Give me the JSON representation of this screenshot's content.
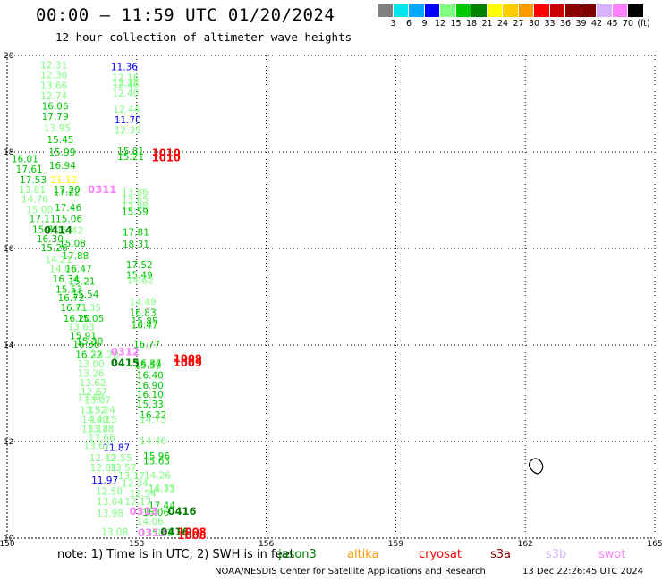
{
  "title": "00:00 – 11:59 UTC 01/20/2024",
  "subtitle": "12 hour collection of altimeter wave heights",
  "color_scale": {
    "colors": [
      "#808080",
      "#00e5ee",
      "#00a8ff",
      "#0000ff",
      "#80ff80",
      "#00c800",
      "#008000",
      "#ffff00",
      "#ffcc00",
      "#ff9900",
      "#ff0000",
      "#c80000",
      "#8b0000",
      "#800000",
      "#d8b4ff",
      "#ff80ff",
      "#000000"
    ],
    "labels": [
      "3",
      "6",
      "9",
      "12",
      "15",
      "18",
      "21",
      "24",
      "27",
      "30",
      "33",
      "36",
      "39",
      "42",
      "45",
      "70",
      "(ft)"
    ]
  },
  "map": {
    "x_ticks": [
      "150",
      "153",
      "156",
      "159",
      "162",
      "165"
    ],
    "y_ticks": [
      "20",
      "18",
      "16",
      "14",
      "12",
      "10"
    ],
    "lon_range": [
      150,
      165
    ],
    "lat_range": [
      10,
      20
    ]
  },
  "observations": [
    {
      "t": "12.31",
      "lon": 150.77,
      "lat": 19.81,
      "c": "#80ff80"
    },
    {
      "t": "12.30",
      "lon": 150.77,
      "lat": 19.6,
      "c": "#80ff80"
    },
    {
      "t": "13.66",
      "lon": 150.77,
      "lat": 19.38,
      "c": "#80ff80"
    },
    {
      "t": "12.74",
      "lon": 150.77,
      "lat": 19.17,
      "c": "#80ff80"
    },
    {
      "t": "16.06",
      "lon": 150.8,
      "lat": 18.95,
      "c": "#00c800"
    },
    {
      "t": "17.79",
      "lon": 150.8,
      "lat": 18.74,
      "c": "#00c800"
    },
    {
      "t": "13.95",
      "lon": 150.85,
      "lat": 18.5,
      "c": "#80ff80"
    },
    {
      "t": "15.45",
      "lon": 150.92,
      "lat": 18.26,
      "c": "#00c800"
    },
    {
      "t": "15.99",
      "lon": 150.96,
      "lat": 18.0,
      "c": "#00c800"
    },
    {
      "t": "16.01",
      "lon": 150.1,
      "lat": 17.86,
      "c": "#00c800"
    },
    {
      "t": "17.61",
      "lon": 150.2,
      "lat": 17.65,
      "c": "#00c800"
    },
    {
      "t": "16.94",
      "lon": 150.97,
      "lat": 17.72,
      "c": "#00c800"
    },
    {
      "t": "17.53",
      "lon": 150.29,
      "lat": 17.43,
      "c": "#00c800"
    },
    {
      "t": "21.12",
      "lon": 151.0,
      "lat": 17.43,
      "c": "#ffff00"
    },
    {
      "t": "13.81",
      "lon": 150.27,
      "lat": 17.22,
      "c": "#80ff80"
    },
    {
      "t": "17.20",
      "lon": 151.07,
      "lat": 17.22,
      "c": "#00c800"
    },
    {
      "t": "17.22",
      "lon": 151.07,
      "lat": 17.18,
      "c": "#00c800"
    },
    {
      "t": "14.76",
      "lon": 150.33,
      "lat": 17.03,
      "c": "#80ff80"
    },
    {
      "t": "15.00",
      "lon": 150.44,
      "lat": 16.81,
      "c": "#80ff80"
    },
    {
      "t": "17.46",
      "lon": 151.1,
      "lat": 16.85,
      "c": "#00c800"
    },
    {
      "t": "17.11",
      "lon": 150.51,
      "lat": 16.62,
      "c": "#00c800"
    },
    {
      "t": "15.06",
      "lon": 151.12,
      "lat": 16.62,
      "c": "#00c800"
    },
    {
      "t": "15.81",
      "lon": 150.58,
      "lat": 16.4,
      "c": "#00c800"
    },
    {
      "t": "15.42",
      "lon": 151.14,
      "lat": 16.38,
      "c": "#80ff80"
    },
    {
      "t": "16.30",
      "lon": 150.68,
      "lat": 16.2,
      "c": "#00c800"
    },
    {
      "t": "15.08",
      "lon": 151.2,
      "lat": 16.11,
      "c": "#00c800"
    },
    {
      "t": "15.26",
      "lon": 150.78,
      "lat": 16.02,
      "c": "#00c800"
    },
    {
      "t": "17.88",
      "lon": 151.27,
      "lat": 15.85,
      "c": "#00c800"
    },
    {
      "t": "14.21",
      "lon": 150.88,
      "lat": 15.78,
      "c": "#80ff80"
    },
    {
      "t": "14.06",
      "lon": 150.98,
      "lat": 15.58,
      "c": "#80ff80"
    },
    {
      "t": "16.47",
      "lon": 151.34,
      "lat": 15.58,
      "c": "#00c800"
    },
    {
      "t": "16.34",
      "lon": 151.05,
      "lat": 15.37,
      "c": "#00c800"
    },
    {
      "t": "15.21",
      "lon": 151.42,
      "lat": 15.32,
      "c": "#00c800"
    },
    {
      "t": "15.53",
      "lon": 151.12,
      "lat": 15.16,
      "c": "#00c800"
    },
    {
      "t": "15.54",
      "lon": 151.5,
      "lat": 15.06,
      "c": "#00c800"
    },
    {
      "t": "16.72",
      "lon": 151.17,
      "lat": 14.98,
      "c": "#00c800"
    },
    {
      "t": "16.71",
      "lon": 151.23,
      "lat": 14.78,
      "c": "#00c800"
    },
    {
      "t": "13.35",
      "lon": 151.55,
      "lat": 14.78,
      "c": "#80ff80"
    },
    {
      "t": "16.20",
      "lon": 151.3,
      "lat": 14.56,
      "c": "#00c800"
    },
    {
      "t": "15.05",
      "lon": 151.62,
      "lat": 14.56,
      "c": "#00c800"
    },
    {
      "t": "13.63",
      "lon": 151.4,
      "lat": 14.38,
      "c": "#80ff80"
    },
    {
      "t": "15.91",
      "lon": 151.45,
      "lat": 14.19,
      "c": "#00c800"
    },
    {
      "t": "16.36",
      "lon": 151.52,
      "lat": 14.02,
      "c": "#00c800"
    },
    {
      "t": "15.30",
      "lon": 151.6,
      "lat": 14.08,
      "c": "#00c800"
    },
    {
      "t": "16.22",
      "lon": 151.58,
      "lat": 13.81,
      "c": "#00c800"
    },
    {
      "t": "14.20",
      "lon": 151.96,
      "lat": 13.81,
      "c": "#80ff80"
    },
    {
      "t": "13.00",
      "lon": 151.63,
      "lat": 13.61,
      "c": "#80ff80"
    },
    {
      "t": "13.26",
      "lon": 151.63,
      "lat": 13.42,
      "c": "#80ff80"
    },
    {
      "t": "13.62",
      "lon": 151.67,
      "lat": 13.22,
      "c": "#80ff80"
    },
    {
      "t": "12.67",
      "lon": 151.7,
      "lat": 13.04,
      "c": "#80ff80"
    },
    {
      "t": "13.07",
      "lon": 151.78,
      "lat": 12.86,
      "c": "#80ff80"
    },
    {
      "t": "13.40",
      "lon": 151.62,
      "lat": 12.92,
      "c": "#80ff80"
    },
    {
      "t": "13.52",
      "lon": 151.68,
      "lat": 12.66,
      "c": "#80ff80"
    },
    {
      "t": "13.24",
      "lon": 151.88,
      "lat": 12.66,
      "c": "#80ff80"
    },
    {
      "t": "14.00",
      "lon": 151.72,
      "lat": 12.46,
      "c": "#80ff80"
    },
    {
      "t": "14.15",
      "lon": 151.92,
      "lat": 12.46,
      "c": "#80ff80"
    },
    {
      "t": "13.78",
      "lon": 151.85,
      "lat": 12.27,
      "c": "#80ff80"
    },
    {
      "t": "13.18",
      "lon": 151.72,
      "lat": 12.27,
      "c": "#80ff80"
    },
    {
      "t": "13.66",
      "lon": 151.88,
      "lat": 12.08,
      "c": "#80ff80"
    },
    {
      "t": "13.67",
      "lon": 151.77,
      "lat": 11.92,
      "c": "#80ff80"
    },
    {
      "t": "11.87",
      "lon": 152.22,
      "lat": 11.88,
      "c": "#0000ff"
    },
    {
      "t": "12.42",
      "lon": 151.9,
      "lat": 11.67,
      "c": "#80ff80"
    },
    {
      "t": "12.55",
      "lon": 152.27,
      "lat": 11.67,
      "c": "#80ff80"
    },
    {
      "t": "12.01",
      "lon": 151.92,
      "lat": 11.46,
      "c": "#80ff80"
    },
    {
      "t": "13.57",
      "lon": 152.37,
      "lat": 11.46,
      "c": "#80ff80"
    },
    {
      "t": "13.17",
      "lon": 152.57,
      "lat": 11.3,
      "c": "#80ff80"
    },
    {
      "t": "11.97",
      "lon": 151.95,
      "lat": 11.2,
      "c": "#0000ff"
    },
    {
      "t": "12.34",
      "lon": 152.65,
      "lat": 11.14,
      "c": "#80ff80"
    },
    {
      "t": "12.50",
      "lon": 152.05,
      "lat": 10.97,
      "c": "#80ff80"
    },
    {
      "t": "12.54",
      "lon": 152.83,
      "lat": 10.93,
      "c": "#80ff80"
    },
    {
      "t": "13.04",
      "lon": 152.07,
      "lat": 10.76,
      "c": "#80ff80"
    },
    {
      "t": "12.17",
      "lon": 152.72,
      "lat": 10.76,
      "c": "#80ff80"
    },
    {
      "t": "13.98",
      "lon": 152.07,
      "lat": 10.52,
      "c": "#80ff80"
    },
    {
      "t": "13.08",
      "lon": 152.18,
      "lat": 10.13,
      "c": "#80ff80"
    },
    {
      "t": "11.36",
      "lon": 152.4,
      "lat": 19.77,
      "c": "#0000ff"
    },
    {
      "t": "12.16",
      "lon": 152.43,
      "lat": 19.55,
      "c": "#80ff80"
    },
    {
      "t": "12.15",
      "lon": 152.43,
      "lat": 19.44,
      "c": "#80ff80"
    },
    {
      "t": "12.46",
      "lon": 152.43,
      "lat": 19.4,
      "c": "#80ff80"
    },
    {
      "t": "12.40",
      "lon": 152.43,
      "lat": 19.22,
      "c": "#80ff80"
    },
    {
      "t": "12.44",
      "lon": 152.45,
      "lat": 18.89,
      "c": "#80ff80"
    },
    {
      "t": "11.70",
      "lon": 152.48,
      "lat": 18.67,
      "c": "#0000ff"
    },
    {
      "t": "12.39",
      "lon": 152.48,
      "lat": 18.45,
      "c": "#80ff80"
    },
    {
      "t": "15.81",
      "lon": 152.55,
      "lat": 18.02,
      "c": "#00c800"
    },
    {
      "t": "15.21",
      "lon": 152.55,
      "lat": 17.91,
      "c": "#00c800"
    },
    {
      "t": "13.86",
      "lon": 152.65,
      "lat": 17.18,
      "c": "#80ff80"
    },
    {
      "t": "13.65",
      "lon": 152.65,
      "lat": 17.02,
      "c": "#80ff80"
    },
    {
      "t": "13.88",
      "lon": 152.65,
      "lat": 16.88,
      "c": "#80ff80"
    },
    {
      "t": "15.59",
      "lon": 152.65,
      "lat": 16.77,
      "c": "#00c800"
    },
    {
      "t": "17.81",
      "lon": 152.67,
      "lat": 16.34,
      "c": "#00c800"
    },
    {
      "t": "18.31",
      "lon": 152.67,
      "lat": 16.09,
      "c": "#00c800"
    },
    {
      "t": "17.52",
      "lon": 152.75,
      "lat": 15.67,
      "c": "#00c800"
    },
    {
      "t": "15.49",
      "lon": 152.75,
      "lat": 15.45,
      "c": "#00c800"
    },
    {
      "t": "14.62",
      "lon": 152.77,
      "lat": 15.34,
      "c": "#80ff80"
    },
    {
      "t": "14.49",
      "lon": 152.83,
      "lat": 14.9,
      "c": "#80ff80"
    },
    {
      "t": "16.83",
      "lon": 152.83,
      "lat": 14.68,
      "c": "#00c800"
    },
    {
      "t": "15.85",
      "lon": 152.87,
      "lat": 14.5,
      "c": "#00c800"
    },
    {
      "t": "16.47",
      "lon": 152.87,
      "lat": 14.42,
      "c": "#00c800"
    },
    {
      "t": "16.77",
      "lon": 152.92,
      "lat": 14.02,
      "c": "#00c800"
    },
    {
      "t": "16.37",
      "lon": 152.95,
      "lat": 13.62,
      "c": "#00c800"
    },
    {
      "t": "15.59",
      "lon": 152.95,
      "lat": 13.58,
      "c": "#00c800"
    },
    {
      "t": "16.40",
      "lon": 153.0,
      "lat": 13.38,
      "c": "#00c800"
    },
    {
      "t": "16.90",
      "lon": 153.0,
      "lat": 13.17,
      "c": "#00c800"
    },
    {
      "t": "16.10",
      "lon": 153.0,
      "lat": 12.98,
      "c": "#00c800"
    },
    {
      "t": "15.33",
      "lon": 153.0,
      "lat": 12.78,
      "c": "#00c800"
    },
    {
      "t": "16.22",
      "lon": 153.07,
      "lat": 12.56,
      "c": "#00c800"
    },
    {
      "t": "14.75",
      "lon": 153.07,
      "lat": 12.46,
      "c": "#80ff80"
    },
    {
      "t": "14.46",
      "lon": 153.07,
      "lat": 12.02,
      "c": "#80ff80"
    },
    {
      "t": "15.96",
      "lon": 153.15,
      "lat": 11.7,
      "c": "#00c800"
    },
    {
      "t": "15.63",
      "lon": 153.15,
      "lat": 11.6,
      "c": "#00c800"
    },
    {
      "t": "14.26",
      "lon": 153.17,
      "lat": 11.31,
      "c": "#80ff80"
    },
    {
      "t": "14.35",
      "lon": 153.27,
      "lat": 11.05,
      "c": "#80ff80"
    },
    {
      "t": "14.73",
      "lon": 153.27,
      "lat": 11.02,
      "c": "#80ff80"
    },
    {
      "t": "17.44",
      "lon": 153.27,
      "lat": 10.68,
      "c": "#00c800"
    },
    {
      "t": "16.06",
      "lon": 153.13,
      "lat": 10.54,
      "c": "#00c800"
    },
    {
      "t": "14.06",
      "lon": 153.0,
      "lat": 10.35,
      "c": "#80ff80"
    },
    {
      "t": "12.05",
      "lon": 153.07,
      "lat": 10.12,
      "c": "#80ff80"
    },
    {
      "t": "15.83",
      "lon": 153.22,
      "lat": 10.12,
      "c": "#00c800"
    }
  ],
  "satellite_ids": [
    {
      "t": "1010",
      "lon": 153.35,
      "lat": 17.98,
      "c": "#ff0000"
    },
    {
      "t": "1010",
      "lon": 153.35,
      "lat": 17.88,
      "c": "#ff0000"
    },
    {
      "t": "0311",
      "lon": 151.87,
      "lat": 17.22,
      "c": "#ff80ff"
    },
    {
      "t": "0414",
      "lon": 150.85,
      "lat": 16.38,
      "c": "#008000"
    },
    {
      "t": "0312",
      "lon": 152.4,
      "lat": 13.86,
      "c": "#ff80ff"
    },
    {
      "t": "0415",
      "lon": 152.4,
      "lat": 13.63,
      "c": "#008000"
    },
    {
      "t": "1009",
      "lon": 153.85,
      "lat": 13.72,
      "c": "#ff0000"
    },
    {
      "t": "1009",
      "lon": 153.85,
      "lat": 13.63,
      "c": "#ff0000"
    },
    {
      "t": "0313",
      "lon": 152.83,
      "lat": 10.56,
      "c": "#ff80ff"
    },
    {
      "t": "0416",
      "lon": 153.72,
      "lat": 10.56,
      "c": "#008000"
    },
    {
      "t": "0313",
      "lon": 153.03,
      "lat": 10.11,
      "c": "#ff80ff"
    },
    {
      "t": "0416",
      "lon": 153.55,
      "lat": 10.13,
      "c": "#008000"
    },
    {
      "t": "1008",
      "lon": 153.95,
      "lat": 10.13,
      "c": "#ff0000"
    },
    {
      "t": "1008",
      "lon": 153.95,
      "lat": 10.06,
      "c": "#ff0000"
    }
  ],
  "note": "note: 1) Time is in UTC; 2) SWH is in feet",
  "legend": [
    {
      "label": "jason3",
      "color": "#008000"
    },
    {
      "label": "altika",
      "color": "#ff9900"
    },
    {
      "label": "cryosat",
      "color": "#ff0000"
    },
    {
      "label": "s3a",
      "color": "#8b0000"
    },
    {
      "label": "s3b",
      "color": "#d8b4ff"
    },
    {
      "label": "swot",
      "color": "#ff80ff"
    }
  ],
  "footer_org": "NOAA/NESDIS Center for Satellite Applications and Research",
  "footer_time": "13 Dec 22:26:45 UTC 2024"
}
